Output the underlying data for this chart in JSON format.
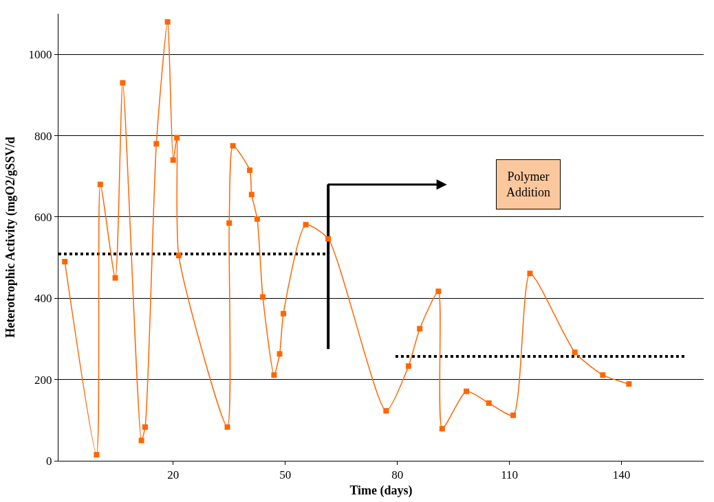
{
  "chart_data": {
    "type": "line",
    "xlabel": "Time (days)",
    "ylabel": "Heterotrophic Activity (mgO2/gSSV/d",
    "xlim": [
      -10.7,
      162
    ],
    "xticks": [
      20,
      50,
      80,
      110,
      140
    ],
    "ylim": [
      0,
      1100
    ],
    "yticks": [
      0,
      200,
      400,
      600,
      800,
      1000
    ],
    "grid": "y",
    "marker": "square",
    "line_style": "solid",
    "x": [
      -9,
      -0.5,
      0.5,
      4.5,
      6.5,
      11.5,
      12.5,
      15.5,
      18.5,
      20,
      21,
      21.5,
      34.5,
      35,
      36,
      40.5,
      41,
      42.5,
      44,
      47,
      48.5,
      49.5,
      55.5,
      61.5,
      77,
      83,
      86,
      91,
      92,
      98.5,
      104.5,
      111,
      115.5,
      127.5,
      135,
      142
    ],
    "series": [
      {
        "color": "#ff6600",
        "values": [
          490,
          15,
          680,
          450,
          930,
          50,
          83,
          780,
          1080,
          740,
          795,
          505,
          83,
          585,
          775,
          715,
          655,
          595,
          403,
          211,
          263,
          362,
          581,
          546,
          123,
          233,
          325,
          417,
          79,
          171,
          142,
          112,
          461,
          267,
          211,
          189
        ]
      },
      {
        "type": "line",
        "color": "#000000",
        "marker": "none",
        "line_style": "dotted",
        "x": [
          -10.7,
          61.5
        ],
        "values": [
          509,
          509
        ]
      },
      {
        "type": "line",
        "color": "#000000",
        "marker": "none",
        "line_style": "dotted",
        "x": [
          79.5,
          157.5
        ],
        "values": [
          257,
          257
        ]
      },
      {
        "type": "line",
        "color": "#000000",
        "marker": "none",
        "line_style": "solid",
        "x": [
          61.5,
          61.5
        ],
        "values": [
          275,
          680
        ]
      }
    ],
    "annotations": [
      "Polymer\nAddition"
    ]
  }
}
